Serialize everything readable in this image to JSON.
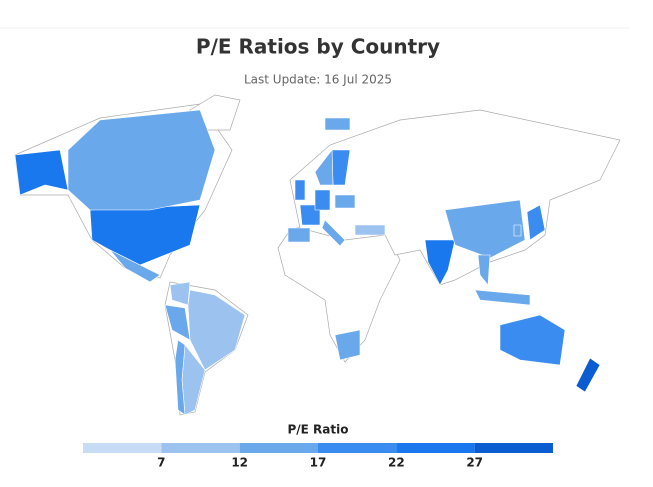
{
  "chart_data": {
    "type": "choropleth",
    "title": "P/E Ratios by Country",
    "subtitle": "Last Update: 16 Jul 2025",
    "legend_title": "P/E Ratio",
    "values": [
      22,
      15,
      13,
      9,
      12,
      9,
      10,
      12,
      12,
      18,
      20,
      20,
      12,
      15,
      20,
      12,
      13,
      9,
      24,
      12,
      18,
      12,
      15,
      14,
      19,
      32,
      14
    ],
    "legend_range": [
      2,
      32
    ],
    "legend_ticks": [
      7,
      12,
      17,
      22,
      27
    ],
    "colors": [
      "#c8dcf6",
      "#9cc3f0",
      "#6aa8ec",
      "#3a8cf0",
      "#1a78ee",
      "#0a5cd0"
    ]
  }
}
